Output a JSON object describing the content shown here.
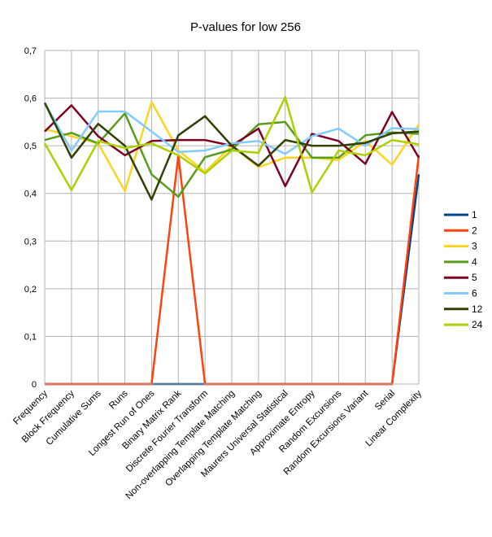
{
  "chart_data": {
    "type": "line",
    "title": "P-values for low 256",
    "xlabel": "",
    "ylabel": "",
    "ylim": [
      0,
      0.7
    ],
    "yticks": [
      0,
      0.1,
      0.2,
      0.3,
      0.4,
      0.5,
      0.6,
      0.7
    ],
    "ytick_labels": [
      "0",
      "0,1",
      "0,2",
      "0,3",
      "0,4",
      "0,5",
      "0,6",
      "0,7"
    ],
    "grid": true,
    "legend_position": "right",
    "categories": [
      "Frequency",
      "Block Frequency",
      "Cumulative Sums",
      "Runs",
      "Longest Run of Ones",
      "Binary Matrix Rank",
      "Discrete Fourier Transform",
      "Non-overlapping Template Matching",
      "Overlapping Template Matching",
      "Maurers Universal Statistical",
      "Approximate Entropy",
      "Random Excursions",
      "Random Excursions Variant",
      "Serial",
      "Linear Complexity"
    ],
    "series": [
      {
        "name": "1",
        "color": "#004586",
        "values": [
          0,
          0,
          0,
          0,
          0,
          0,
          0,
          0,
          0,
          0,
          0,
          0,
          0,
          0,
          0.44
        ]
      },
      {
        "name": "2",
        "color": "#ff420e",
        "values": [
          0,
          0,
          0,
          0,
          0,
          0.48,
          0,
          0,
          0,
          0,
          0,
          0,
          0,
          0,
          0.48
        ]
      },
      {
        "name": "3",
        "color": "#ffd320",
        "values": [
          0.535,
          0.52,
          0.505,
          0.405,
          0.592,
          0.49,
          0.445,
          0.5,
          0.455,
          0.475,
          0.475,
          0.47,
          0.51,
          0.46,
          0.545
        ]
      },
      {
        "name": "4",
        "color": "#579d1c",
        "values": [
          0.512,
          0.527,
          0.505,
          0.568,
          0.44,
          0.393,
          0.476,
          0.492,
          0.545,
          0.55,
          0.475,
          0.475,
          0.522,
          0.528,
          0.525
        ]
      },
      {
        "name": "5",
        "color": "#7e0021",
        "values": [
          0.53,
          0.585,
          0.52,
          0.48,
          0.51,
          0.512,
          0.512,
          0.5,
          0.536,
          0.415,
          0.525,
          0.51,
          0.462,
          0.571,
          0.475
        ]
      },
      {
        "name": "6",
        "color": "#83caff",
        "values": [
          0.59,
          0.49,
          0.572,
          0.572,
          0.53,
          0.487,
          0.49,
          0.505,
          0.51,
          0.483,
          0.52,
          0.536,
          0.5,
          0.537,
          0.535
        ]
      },
      {
        "name": "12",
        "color": "#314004",
        "values": [
          0.59,
          0.475,
          0.546,
          0.5,
          0.387,
          0.522,
          0.562,
          0.5,
          0.458,
          0.512,
          0.5,
          0.5,
          0.506,
          0.526,
          0.53
        ]
      },
      {
        "name": "24",
        "color": "#aecf00",
        "values": [
          0.505,
          0.407,
          0.51,
          0.495,
          0.505,
          0.48,
          0.442,
          0.49,
          0.485,
          0.602,
          0.402,
          0.49,
          0.48,
          0.512,
          0.503
        ]
      }
    ]
  }
}
